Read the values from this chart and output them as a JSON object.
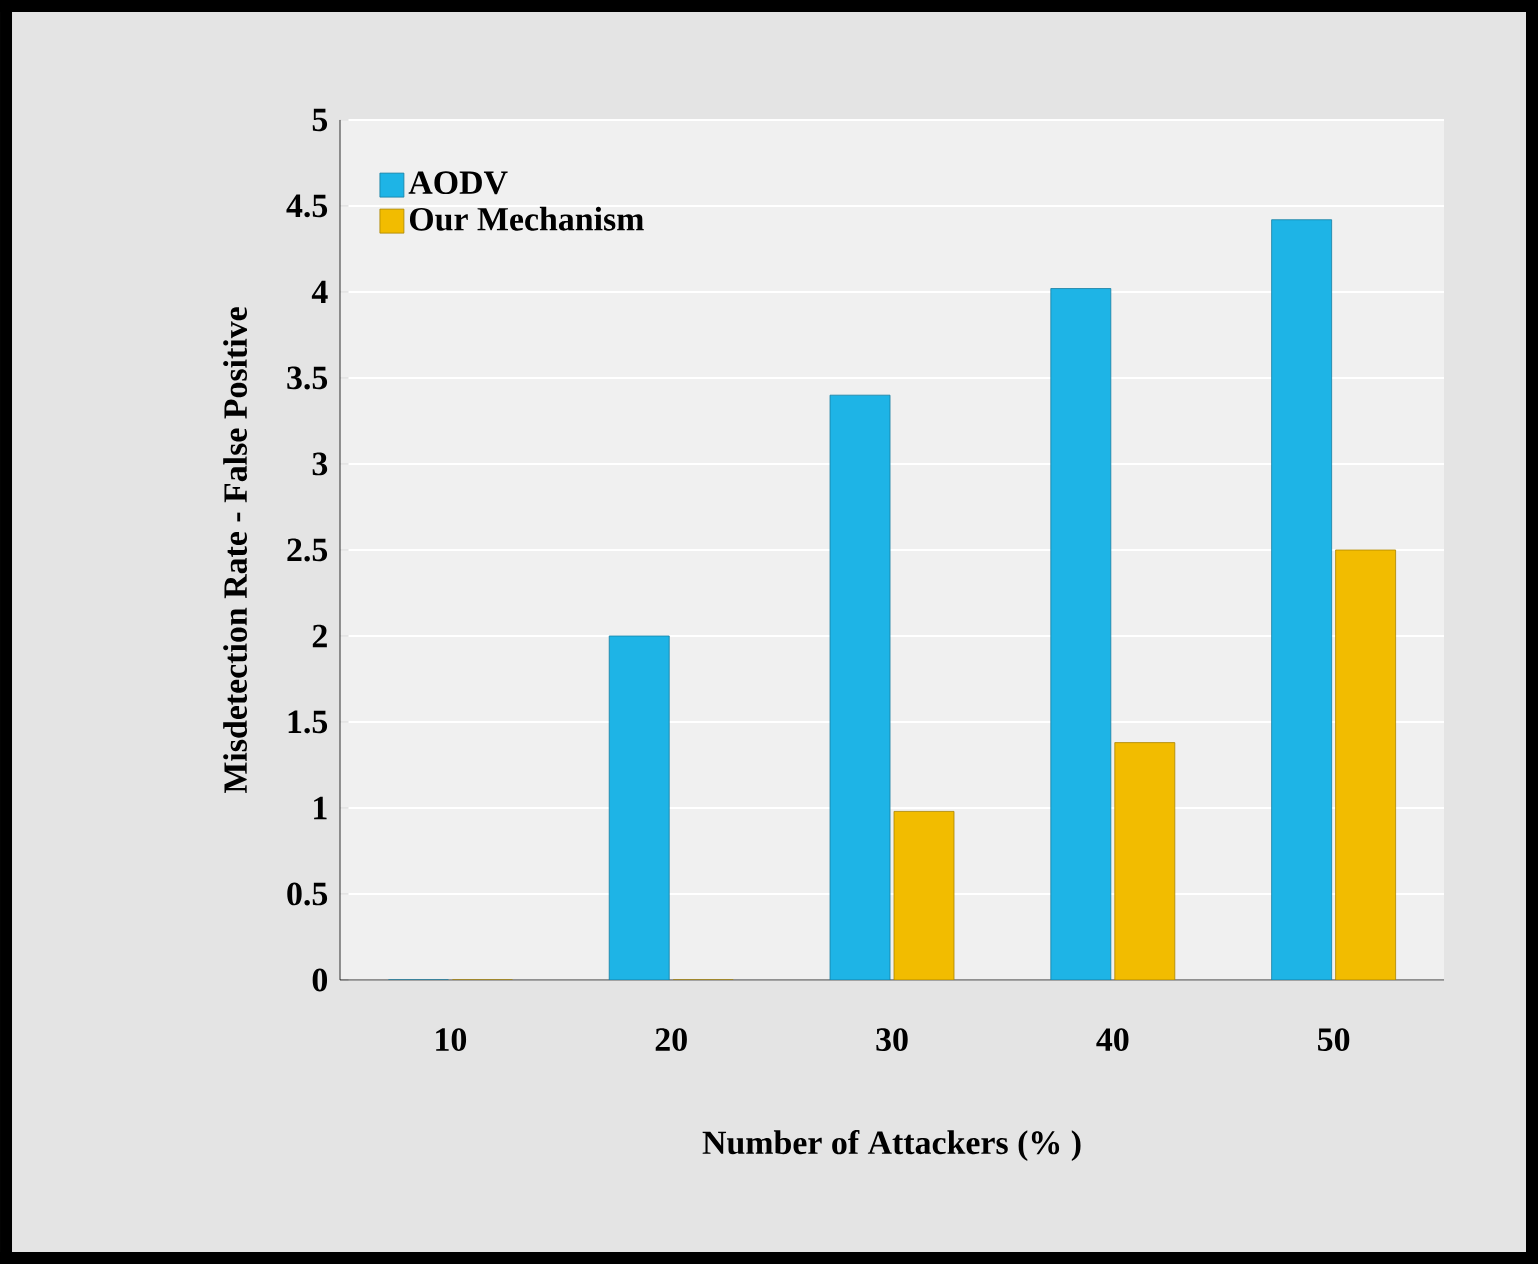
{
  "chart_data": {
    "type": "bar",
    "xlabel": "Number  of Attackers (% )",
    "ylabel": "Misdetection  Rate - False Positive",
    "categories": [
      "10",
      "20",
      "30",
      "40",
      "50"
    ],
    "series": [
      {
        "name": "AODV",
        "color": "#1eb4e6",
        "values": [
          0,
          2,
          3.4,
          4.02,
          4.42
        ]
      },
      {
        "name": "Our Mechanism",
        "color": "#f2bc00",
        "values": [
          0,
          0,
          0.98,
          1.38,
          2.5
        ]
      }
    ],
    "ylim": [
      0,
      5
    ],
    "yticks": [
      0,
      0.5,
      1,
      1.5,
      2,
      2.5,
      3,
      3.5,
      4,
      4.5,
      5
    ],
    "grid": "y",
    "legend": "top left"
  }
}
